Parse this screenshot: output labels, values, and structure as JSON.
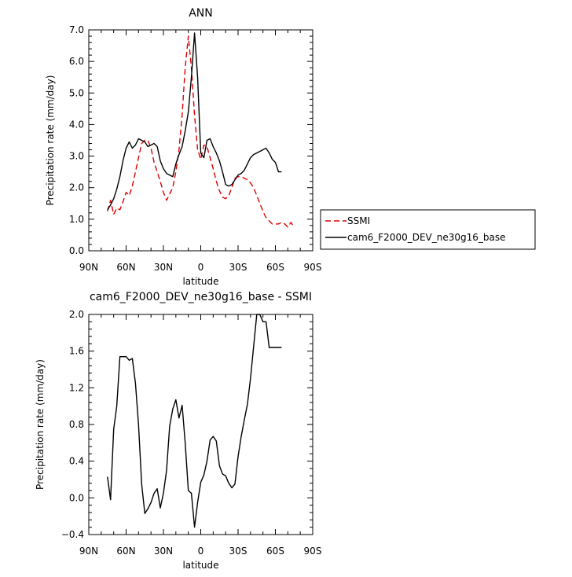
{
  "chart_data": [
    {
      "type": "line",
      "title": "ANN",
      "xlabel": "latitude",
      "ylabel": "Precipitation rate  (mm/day)",
      "xlim": [
        -90,
        90
      ],
      "ylim": [
        0,
        7
      ],
      "xticks": [
        -90,
        -60,
        -30,
        0,
        30,
        60,
        90
      ],
      "xtick_labels": [
        "90N",
        "60N",
        "30N",
        "0",
        "30S",
        "60S",
        "90S"
      ],
      "yticks": [
        0,
        1,
        2,
        3,
        4,
        5,
        6,
        7
      ],
      "ytick_labels": [
        "0.0",
        "1.0",
        "2.0",
        "3.0",
        "4.0",
        "5.0",
        "6.0",
        "7.0"
      ],
      "legend_position": "right",
      "series": [
        {
          "name": "SSMI",
          "color": "#dd0000",
          "dash": "dashed",
          "x": [
            -75,
            -72.5,
            -70,
            -67.5,
            -65,
            -62.5,
            -60,
            -57.5,
            -55,
            -52.5,
            -50,
            -47.5,
            -45,
            -42.5,
            -40,
            -37.5,
            -35,
            -32.5,
            -30,
            -27.5,
            -25,
            -22.5,
            -20,
            -17.5,
            -15,
            -12.5,
            -10,
            -7.5,
            -5,
            -2.5,
            0,
            2.5,
            5,
            7.5,
            10,
            12.5,
            15,
            17.5,
            20,
            22.5,
            25,
            27.5,
            30,
            32.5,
            35,
            37.5,
            40,
            42.5,
            45,
            47.5,
            50,
            52.5,
            55,
            57.5,
            60,
            62.5,
            65,
            67.5,
            70,
            72.5,
            75
          ],
          "y": [
            1.25,
            1.6,
            1.15,
            1.35,
            1.3,
            1.55,
            1.85,
            1.75,
            2.05,
            2.5,
            2.95,
            3.4,
            3.5,
            3.5,
            3.25,
            2.8,
            2.5,
            2.2,
            1.85,
            1.6,
            1.8,
            2.0,
            2.5,
            3.2,
            4.3,
            5.8,
            6.8,
            5.8,
            4.3,
            3.2,
            2.9,
            3.35,
            3.3,
            2.95,
            2.6,
            2.2,
            1.9,
            1.7,
            1.65,
            1.75,
            2.0,
            2.3,
            2.35,
            2.35,
            2.3,
            2.25,
            2.15,
            2.0,
            1.75,
            1.5,
            1.25,
            1.05,
            0.95,
            0.85,
            0.85,
            0.85,
            0.9,
            0.85,
            0.75,
            0.9,
            0.75
          ]
        },
        {
          "name": "cam6_F2000_DEV_ne30g16_base",
          "color": "#000000",
          "dash": "solid",
          "x": [
            -75,
            -72.5,
            -70,
            -67.5,
            -65,
            -62.5,
            -60,
            -57.5,
            -55,
            -52.5,
            -50,
            -47.5,
            -45,
            -42.5,
            -40,
            -37.5,
            -35,
            -32.5,
            -30,
            -27.5,
            -25,
            -22.5,
            -20,
            -17.5,
            -15,
            -12.5,
            -10,
            -7.5,
            -5,
            -2.5,
            0,
            2.5,
            5,
            7.5,
            10,
            12.5,
            15,
            17.5,
            20,
            22.5,
            25,
            27.5,
            30,
            32.5,
            35,
            37.5,
            40,
            42.5,
            45,
            47.5,
            50,
            52.5,
            55,
            57.5,
            60,
            62.5,
            65
          ],
          "y": [
            1.3,
            1.45,
            1.65,
            1.95,
            2.35,
            2.85,
            3.25,
            3.45,
            3.25,
            3.35,
            3.55,
            3.5,
            3.45,
            3.3,
            3.35,
            3.4,
            3.3,
            2.85,
            2.6,
            2.45,
            2.4,
            2.35,
            2.75,
            3.05,
            3.3,
            3.8,
            4.4,
            5.5,
            6.9,
            5.5,
            3.1,
            2.95,
            3.5,
            3.55,
            3.3,
            3.1,
            2.85,
            2.5,
            2.1,
            2.05,
            2.1,
            2.25,
            2.4,
            2.45,
            2.55,
            2.75,
            2.95,
            3.05,
            3.1,
            3.15,
            3.2,
            3.25,
            3.1,
            2.9,
            2.8,
            2.5,
            2.5
          ]
        }
      ]
    },
    {
      "type": "line",
      "title": "cam6_F2000_DEV_ne30g16_base - SSMI",
      "xlabel": "latitude",
      "ylabel": "Precipitation rate  (mm/day)",
      "xlim": [
        -90,
        90
      ],
      "ylim": [
        -0.4,
        2.0
      ],
      "xticks": [
        -90,
        -60,
        -30,
        0,
        30,
        60,
        90
      ],
      "xtick_labels": [
        "90N",
        "60N",
        "30N",
        "0",
        "30S",
        "60S",
        "90S"
      ],
      "yticks": [
        -0.4,
        0.0,
        0.4,
        0.8,
        1.2,
        1.6,
        2.0
      ],
      "ytick_labels": [
        "−0.4",
        "0.0",
        "0.4",
        "0.8",
        "1.2",
        "1.6",
        "2.0"
      ],
      "series": [
        {
          "color": "#000000",
          "dash": "solid",
          "x": [
            -75,
            -72.5,
            -70,
            -67.5,
            -65,
            -62.5,
            -60,
            -57.5,
            -55,
            -52.5,
            -50,
            -47.5,
            -45,
            -42.5,
            -40,
            -37.5,
            -35,
            -32.5,
            -30,
            -27.5,
            -25,
            -22.5,
            -20,
            -17.5,
            -15,
            -12.5,
            -10,
            -7.5,
            -5,
            -2.5,
            0,
            2.5,
            5,
            7.5,
            10,
            12.5,
            15,
            17.5,
            20,
            22.5,
            25,
            27.5,
            30,
            32.5,
            35,
            37.5,
            40,
            42.5,
            45,
            47.5,
            50,
            52.5,
            55,
            57.5,
            60,
            62.5,
            65
          ],
          "y": [
            0.23,
            -0.02,
            0.75,
            1.0,
            1.54,
            1.54,
            1.54,
            1.5,
            1.52,
            1.25,
            0.8,
            0.15,
            -0.17,
            -0.12,
            -0.05,
            0.05,
            0.1,
            -0.11,
            0.05,
            0.3,
            0.78,
            0.97,
            1.07,
            0.87,
            1.01,
            0.6,
            0.08,
            0.05,
            -0.32,
            -0.05,
            0.17,
            0.25,
            0.4,
            0.63,
            0.67,
            0.62,
            0.35,
            0.26,
            0.24,
            0.16,
            0.11,
            0.15,
            0.45,
            0.67,
            0.85,
            1.02,
            1.3,
            1.65,
            2.0,
            2.0,
            1.92,
            1.92,
            1.64,
            1.64,
            1.64,
            1.64,
            1.64
          ]
        }
      ]
    }
  ],
  "legend": {
    "items": [
      {
        "label": "SSMI",
        "color": "#dd0000",
        "dash": "dashed"
      },
      {
        "label": "cam6_F2000_DEV_ne30g16_base",
        "color": "#000000",
        "dash": "solid"
      }
    ]
  }
}
